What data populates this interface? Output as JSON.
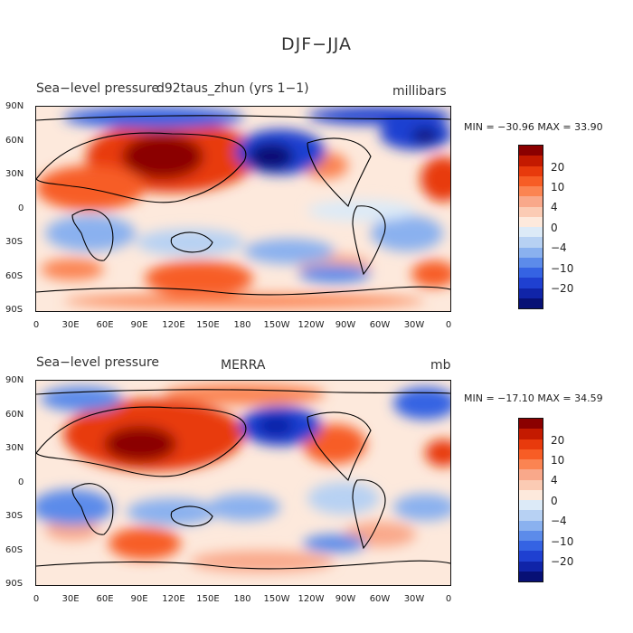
{
  "figure_title": "DJF−JJA",
  "panels": [
    {
      "left_title": "Sea−level pressure",
      "center_title": "d92taus_zhun (yrs 1−1)",
      "units": "millibars",
      "stats": "MIN = −30.96 MAX =  33.90"
    },
    {
      "left_title": "Sea−level pressure",
      "center_title": "MERRA",
      "units": "mb",
      "stats": "MIN = −17.10 MAX =  34.59"
    }
  ],
  "lat_labels": [
    "90N",
    "60N",
    "30N",
    "0",
    "30S",
    "60S",
    "90S"
  ],
  "lon_labels": [
    "0",
    "30E",
    "60E",
    "90E",
    "120E",
    "150E",
    "180",
    "150W",
    "120W",
    "90W",
    "60W",
    "30W",
    "0"
  ],
  "colorbar": {
    "labels": [
      "20",
      "10",
      "4",
      "0",
      "−4",
      "−10",
      "−20"
    ],
    "colors": [
      "#8b0000",
      "#c41a00",
      "#e83a0c",
      "#f75d25",
      "#fb8452",
      "#f9a88a",
      "#fbcbb4",
      "#fde9dc",
      "#dceaf7",
      "#b7d1f3",
      "#8ab1ef",
      "#5c8bea",
      "#3563e3",
      "#1f40d1",
      "#1024a8",
      "#071075"
    ]
  },
  "chart_data": {
    "type": "heatmap",
    "title": "DJF−JJA",
    "variable": "Sea−level pressure",
    "panels": [
      "d92taus_zhun (yrs 1−1)",
      "MERRA"
    ],
    "units": [
      "millibars",
      "mb"
    ],
    "min": [
      -30.96,
      -17.1
    ],
    "max": [
      33.9,
      34.59
    ],
    "colorbar_levels": [
      -20,
      -10,
      -4,
      0,
      4,
      10,
      20
    ],
    "xlim": [
      0,
      360
    ],
    "ylim": [
      -90,
      90
    ]
  }
}
